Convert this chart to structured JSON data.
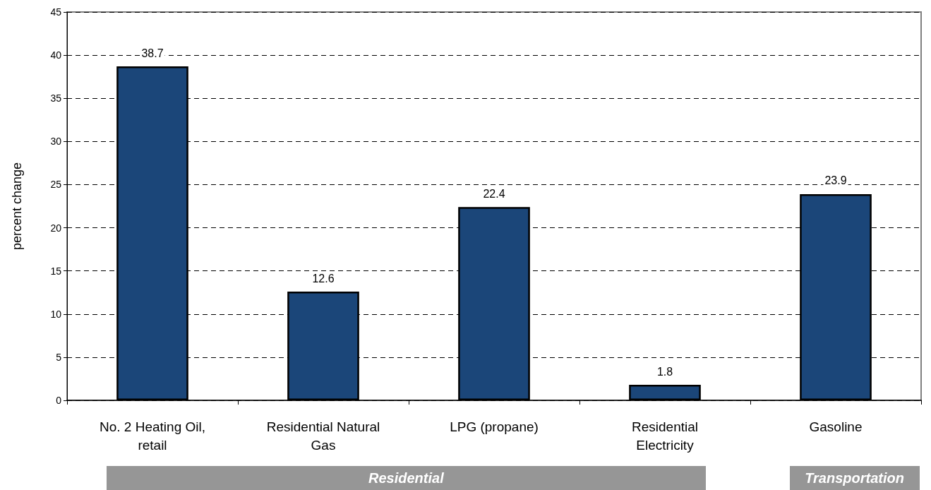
{
  "chart_data": {
    "type": "bar",
    "ylabel": "percent change",
    "categories": [
      "No. 2 Heating Oil,\nretail",
      "Residential Natural\nGas",
      "LPG (propane)",
      "Residential\nElectricity",
      "Gasoline"
    ],
    "values": [
      38.7,
      12.6,
      22.4,
      1.8,
      23.9
    ],
    "color": "#1b4679",
    "ylim": [
      0,
      45
    ],
    "yticks": [
      0,
      5,
      10,
      15,
      20,
      25,
      30,
      35,
      40,
      45
    ],
    "grid": "y",
    "data_labels": true,
    "annotations": [
      "Residential",
      "Transportation"
    ]
  }
}
